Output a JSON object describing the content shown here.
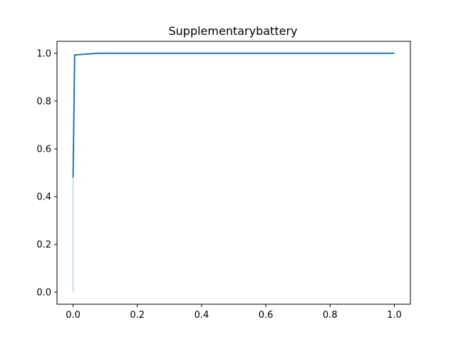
{
  "chart_data": {
    "type": "line",
    "title": "Supplementarybattery",
    "xlabel": "",
    "ylabel": "",
    "xlim": [
      -0.05,
      1.05
    ],
    "ylim": [
      -0.05,
      1.05
    ],
    "x_ticks": [
      0.0,
      0.2,
      0.4,
      0.6,
      0.8,
      1.0
    ],
    "x_tick_labels": [
      "0.0",
      "0.2",
      "0.4",
      "0.6",
      "0.8",
      "1.0"
    ],
    "y_ticks": [
      0.0,
      0.2,
      0.4,
      0.6,
      0.8,
      1.0
    ],
    "y_tick_labels": [
      "0.0",
      "0.2",
      "0.4",
      "0.6",
      "0.8",
      "1.0"
    ],
    "grid": false,
    "legend": "none",
    "series": [
      {
        "color": "#1f77b4",
        "x": [
          0.0,
          0.0,
          0.0,
          0.005,
          0.075,
          1.0
        ],
        "y": [
          0.0,
          0.48,
          0.48,
          0.993,
          1.0,
          1.0
        ],
        "faded_until_index": 1
      }
    ]
  }
}
